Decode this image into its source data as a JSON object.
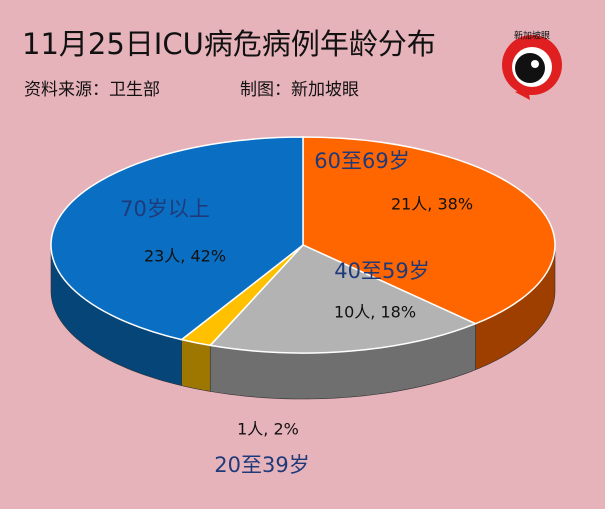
{
  "chart_data": {
    "type": "pie",
    "title": "11月25日ICU病危病例年龄分布",
    "source": "资料来源：卫生部",
    "credit": "制图：新加坡眼",
    "logo_text": "新加坡眼",
    "categories": [
      "60至69岁",
      "40至59岁",
      "20至39岁",
      "70岁以上"
    ],
    "values": [
      38,
      18,
      2,
      42
    ],
    "value_labels": [
      "21人, 38%",
      "10人, 18%",
      "1人, 2%",
      "23人, 42%"
    ],
    "colors": [
      "#ff6600",
      "#b3b3b3",
      "#ffc000",
      "#0a6fc2"
    ]
  }
}
